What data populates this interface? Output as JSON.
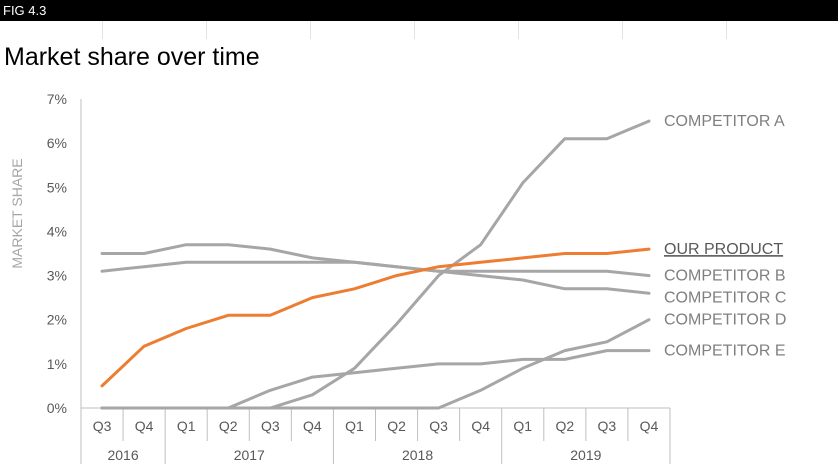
{
  "figure_label": "FIG 4.3",
  "title": "Market share over time",
  "colors": {
    "highlight": "#ED7D31",
    "competitor": "#A6A6A6",
    "axis": "#BFBFBF",
    "text": "#595959"
  },
  "chart_data": {
    "type": "line",
    "title": "Market share over time",
    "ylabel": "MARKET SHARE",
    "xlabel": "",
    "ylim": [
      0,
      7
    ],
    "yticks": [
      0,
      1,
      2,
      3,
      4,
      5,
      6,
      7
    ],
    "ytick_format": "%",
    "grid": false,
    "legend": "direct labels at right end of lines",
    "categories": [
      "Q3 2016",
      "Q4 2016",
      "Q1 2017",
      "Q2 2017",
      "Q3 2017",
      "Q4 2017",
      "Q1 2018",
      "Q2 2018",
      "Q3 2018",
      "Q4 2018",
      "Q1 2019",
      "Q2 2019",
      "Q3 2019",
      "Q4 2019"
    ],
    "quarter_labels": [
      "Q3",
      "Q4",
      "Q1",
      "Q2",
      "Q3",
      "Q4",
      "Q1",
      "Q2",
      "Q3",
      "Q4",
      "Q1",
      "Q2",
      "Q3",
      "Q4"
    ],
    "year_groups": [
      {
        "label": "2016",
        "span": 2
      },
      {
        "label": "2017",
        "span": 4
      },
      {
        "label": "2018",
        "span": 4
      },
      {
        "label": "2019",
        "span": 4
      }
    ],
    "series": [
      {
        "name": "COMPETITOR A",
        "highlight": false,
        "values": [
          0,
          0,
          0,
          0,
          0,
          0.3,
          0.9,
          1.9,
          3.0,
          3.7,
          5.1,
          6.1,
          6.1,
          6.5
        ]
      },
      {
        "name": "OUR PRODUCT",
        "highlight": true,
        "values": [
          0.5,
          1.4,
          1.8,
          2.1,
          2.1,
          2.5,
          2.7,
          3.0,
          3.2,
          3.3,
          3.4,
          3.5,
          3.5,
          3.6
        ]
      },
      {
        "name": "COMPETITOR B",
        "highlight": false,
        "values": [
          3.1,
          3.2,
          3.3,
          3.3,
          3.3,
          3.3,
          3.3,
          3.2,
          3.1,
          3.1,
          3.1,
          3.1,
          3.1,
          3.0
        ]
      },
      {
        "name": "COMPETITOR C",
        "highlight": false,
        "values": [
          3.5,
          3.5,
          3.7,
          3.7,
          3.6,
          3.4,
          3.3,
          3.2,
          3.1,
          3.0,
          2.9,
          2.7,
          2.7,
          2.6
        ]
      },
      {
        "name": "COMPETITOR D",
        "highlight": false,
        "values": [
          0,
          0,
          0,
          0,
          0,
          0,
          0,
          0,
          0,
          0.4,
          0.9,
          1.3,
          1.5,
          2.0
        ]
      },
      {
        "name": "COMPETITOR E",
        "highlight": false,
        "values": [
          0,
          0,
          0,
          0,
          0.4,
          0.7,
          0.8,
          0.9,
          1.0,
          1.0,
          1.1,
          1.1,
          1.3,
          1.3
        ]
      }
    ]
  }
}
